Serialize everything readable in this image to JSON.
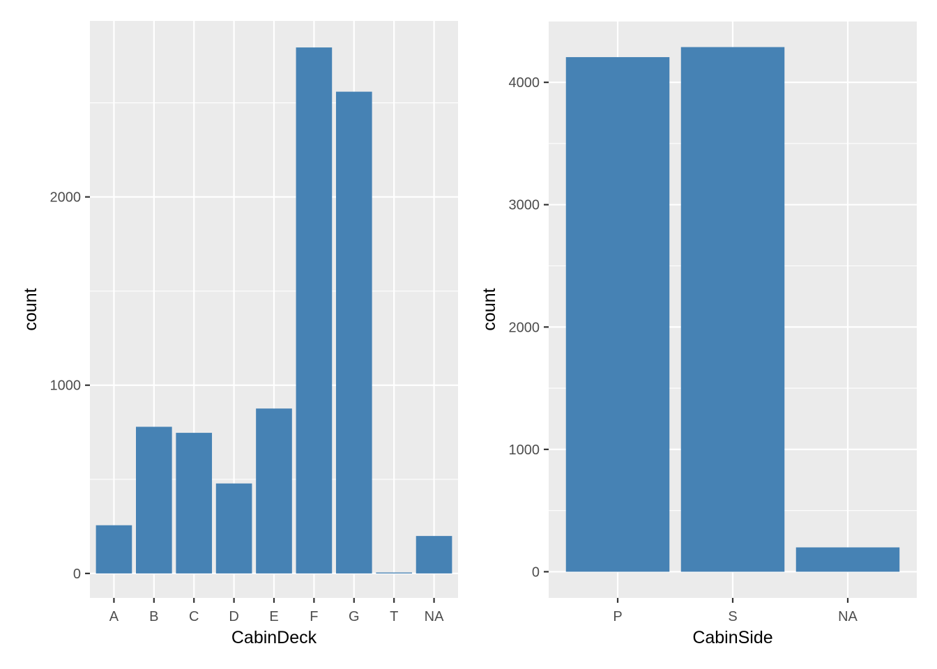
{
  "chart_data": [
    {
      "type": "bar",
      "xlabel": "CabinDeck",
      "ylabel": "count",
      "categories": [
        "A",
        "B",
        "C",
        "D",
        "E",
        "F",
        "G",
        "T",
        "NA"
      ],
      "values": [
        256,
        779,
        747,
        478,
        876,
        2794,
        2559,
        5,
        199
      ],
      "ylim": [
        -130,
        2935
      ],
      "yticks": [
        0,
        1000,
        2000
      ],
      "grid": true,
      "legend": "none",
      "bar_color": "#4682B4",
      "panel_color": "#EBEBEB"
    },
    {
      "type": "bar",
      "xlabel": "CabinSide",
      "ylabel": "count",
      "categories": [
        "P",
        "S",
        "NA"
      ],
      "values": [
        4206,
        4288,
        199
      ],
      "ylim": [
        -214,
        4502
      ],
      "yticks": [
        0,
        1000,
        2000,
        3000,
        4000
      ],
      "grid": true,
      "legend": "none",
      "bar_color": "#4682B4",
      "panel_color": "#EBEBEB"
    }
  ]
}
